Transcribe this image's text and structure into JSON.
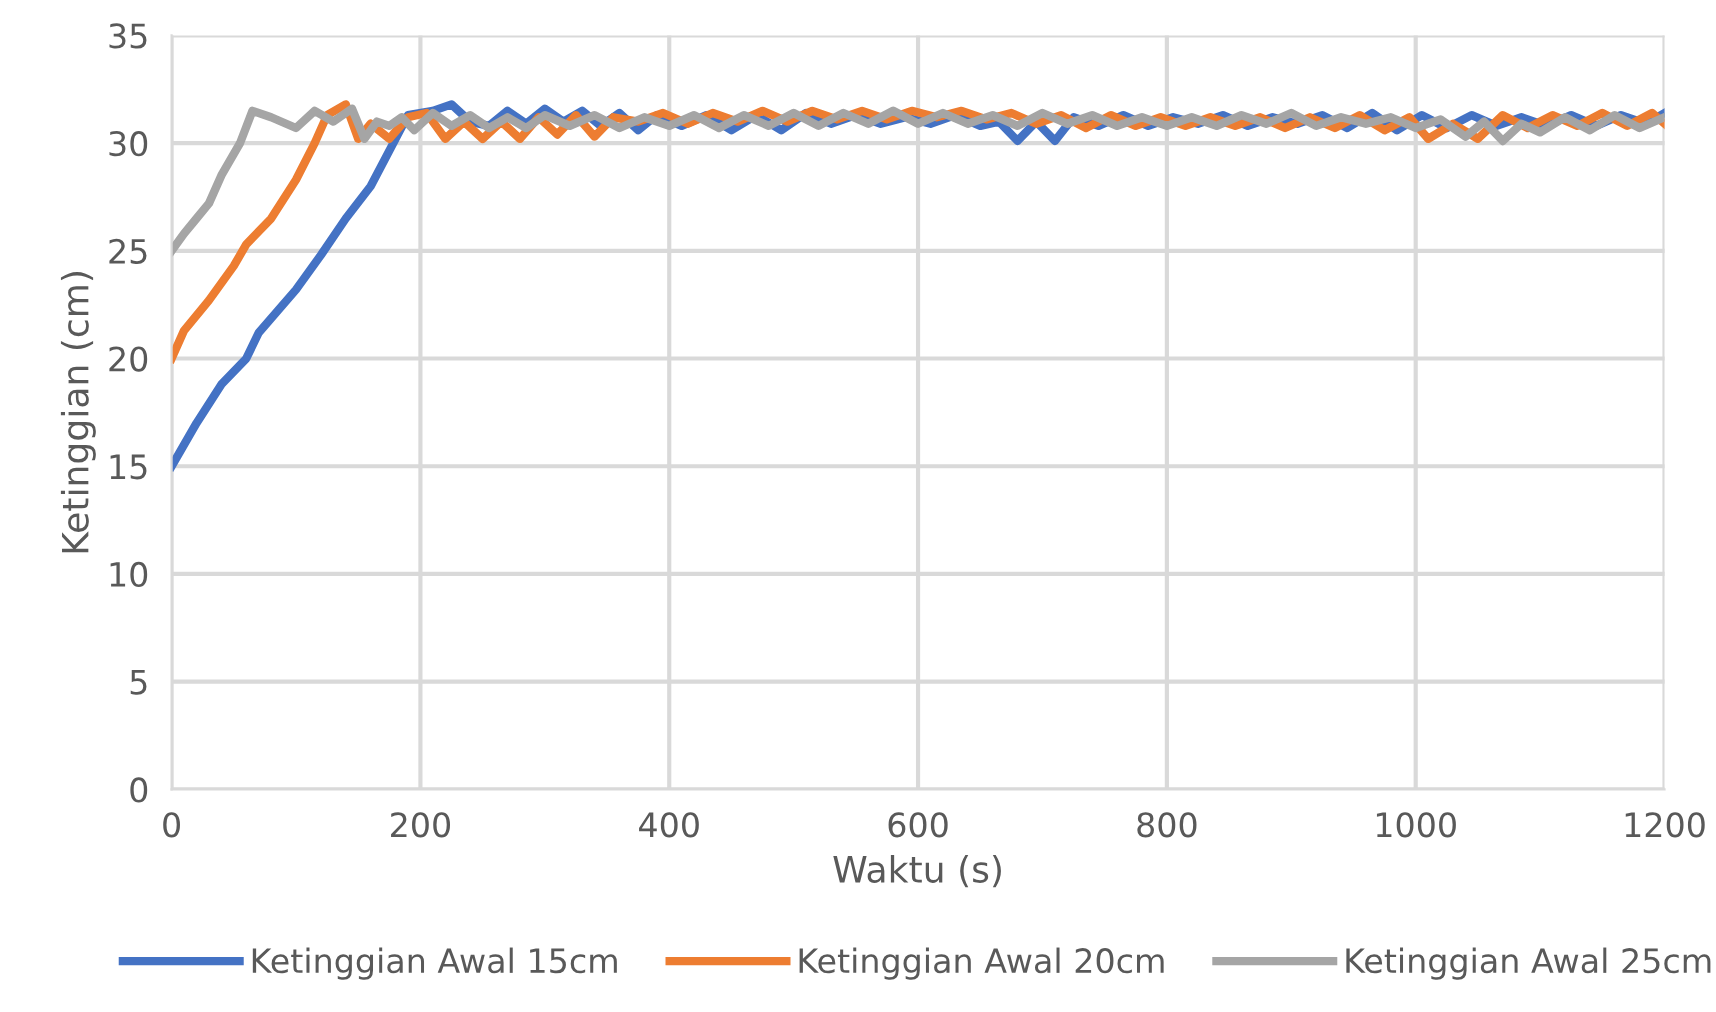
{
  "chart_data": {
    "type": "line",
    "xlabel": "Waktu (s)",
    "ylabel": "Ketinggian (cm)",
    "xlim": [
      0,
      1200
    ],
    "ylim": [
      0,
      35
    ],
    "xticks": [
      0,
      200,
      400,
      600,
      800,
      1000,
      1200
    ],
    "yticks": [
      0,
      5,
      10,
      15,
      20,
      25,
      30,
      35
    ],
    "grid": true,
    "legend": "bottom",
    "marker": "none",
    "line_style": "solid",
    "series": [
      {
        "name": "Ketinggian Awal 15cm",
        "color": "#4472c4",
        "x": [
          0,
          20,
          40,
          60,
          70,
          100,
          120,
          140,
          160,
          180,
          190,
          210,
          225,
          240,
          255,
          270,
          285,
          300,
          315,
          330,
          345,
          360,
          375,
          390,
          410,
          430,
          450,
          470,
          490,
          510,
          530,
          550,
          570,
          590,
          610,
          630,
          650,
          665,
          680,
          695,
          710,
          725,
          745,
          765,
          785,
          805,
          825,
          845,
          865,
          885,
          905,
          925,
          945,
          965,
          985,
          1005,
          1025,
          1045,
          1065,
          1085,
          1105,
          1125,
          1145,
          1165,
          1185,
          1200
        ],
        "values": [
          15,
          17,
          18.8,
          20,
          21.2,
          23.2,
          24.8,
          26.5,
          28,
          30.2,
          31.3,
          31.5,
          31.8,
          31,
          30.8,
          31.5,
          30.9,
          31.6,
          31,
          31.5,
          30.8,
          31.4,
          30.6,
          31.3,
          30.8,
          31.3,
          30.6,
          31.3,
          30.6,
          31.4,
          30.9,
          31.3,
          30.9,
          31.2,
          30.9,
          31.3,
          30.8,
          31,
          30.1,
          31,
          30.1,
          31.2,
          30.8,
          31.3,
          30.8,
          31.2,
          30.9,
          31.3,
          30.8,
          31.2,
          30.9,
          31.3,
          30.7,
          31.4,
          30.6,
          31.3,
          30.7,
          31.3,
          30.8,
          31.2,
          30.8,
          31.3,
          30.8,
          31.3,
          30.9,
          31.4
        ]
      },
      {
        "name": "Ketinggian Awal 20cm",
        "color": "#ed7d31",
        "x": [
          0,
          10,
          30,
          50,
          60,
          80,
          100,
          115,
          125,
          140,
          150,
          160,
          175,
          190,
          205,
          220,
          235,
          250,
          265,
          280,
          295,
          310,
          325,
          340,
          355,
          375,
          395,
          415,
          435,
          455,
          475,
          495,
          515,
          535,
          555,
          575,
          595,
          615,
          635,
          655,
          675,
          695,
          715,
          735,
          755,
          775,
          795,
          815,
          835,
          855,
          875,
          895,
          915,
          935,
          955,
          975,
          995,
          1010,
          1030,
          1050,
          1070,
          1090,
          1110,
          1130,
          1150,
          1170,
          1190,
          1200
        ],
        "values": [
          20,
          21.3,
          22.7,
          24.3,
          25.3,
          26.5,
          28.3,
          30,
          31.3,
          31.8,
          30.2,
          30.9,
          30.2,
          31.2,
          31.4,
          30.2,
          31,
          30.2,
          31,
          30.2,
          31.2,
          30.4,
          31.3,
          30.3,
          31.2,
          31,
          31.4,
          30.9,
          31.4,
          31,
          31.5,
          31,
          31.5,
          31.1,
          31.5,
          31.1,
          31.5,
          31.2,
          31.5,
          31.1,
          31.4,
          30.9,
          31.3,
          30.7,
          31.3,
          30.8,
          31.2,
          30.8,
          31.2,
          30.8,
          31.2,
          30.7,
          31.2,
          30.7,
          31.3,
          30.6,
          31.2,
          30.2,
          30.9,
          30.2,
          31.3,
          30.7,
          31.3,
          30.8,
          31.4,
          30.8,
          31.4,
          30.9
        ]
      },
      {
        "name": "Ketinggian Awal 25cm",
        "color": "#a5a5a5",
        "x": [
          0,
          10,
          20,
          30,
          40,
          55,
          65,
          80,
          100,
          115,
          130,
          145,
          155,
          165,
          175,
          185,
          195,
          210,
          225,
          240,
          255,
          270,
          285,
          300,
          320,
          340,
          360,
          380,
          400,
          420,
          440,
          460,
          480,
          500,
          520,
          540,
          560,
          580,
          600,
          620,
          640,
          660,
          680,
          700,
          720,
          740,
          760,
          780,
          800,
          820,
          840,
          860,
          880,
          900,
          920,
          940,
          960,
          980,
          1000,
          1020,
          1040,
          1055,
          1070,
          1085,
          1100,
          1120,
          1140,
          1160,
          1180,
          1200
        ],
        "values": [
          25,
          25.8,
          26.5,
          27.2,
          28.5,
          30,
          31.5,
          31.2,
          30.7,
          31.5,
          31,
          31.6,
          30.2,
          31,
          30.8,
          31.2,
          30.6,
          31.4,
          30.8,
          31.3,
          30.7,
          31.2,
          30.7,
          31.3,
          30.8,
          31.3,
          30.7,
          31.2,
          30.8,
          31.3,
          30.7,
          31.3,
          30.8,
          31.4,
          30.8,
          31.4,
          30.9,
          31.5,
          30.9,
          31.4,
          30.9,
          31.3,
          30.8,
          31.4,
          30.9,
          31.3,
          30.8,
          31.2,
          30.8,
          31.2,
          30.8,
          31.3,
          30.9,
          31.4,
          30.8,
          31.2,
          30.9,
          31.2,
          30.7,
          31.1,
          30.3,
          31,
          30.1,
          30.9,
          30.5,
          31.2,
          30.6,
          31.3,
          30.7,
          31.2
        ]
      }
    ]
  }
}
